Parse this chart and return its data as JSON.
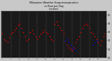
{
  "title": "Milwaukee Weather Evapotranspiration vs Rain per Day (Inches)",
  "background_color": "#c8c8c8",
  "plot_bg_color": "#1a1a1a",
  "et_color": "#ff0000",
  "rain_color": "#0000ff",
  "grid_color": "#808080",
  "ylim": [
    0.0,
    0.55
  ],
  "n_points": 60,
  "et_data": [
    0.28,
    0.22,
    0.2,
    0.18,
    0.24,
    0.28,
    0.3,
    0.32,
    0.35,
    0.38,
    0.4,
    0.35,
    0.3,
    0.25,
    0.2,
    0.22,
    0.3,
    0.32,
    0.28,
    0.25,
    0.22,
    0.25,
    0.28,
    0.3,
    0.32,
    0.3,
    0.28,
    0.25,
    0.22,
    0.2,
    0.4,
    0.42,
    0.38,
    0.35,
    0.32,
    0.28,
    0.2,
    0.15,
    0.12,
    0.1,
    0.08,
    0.12,
    0.18,
    0.22,
    0.25,
    0.3,
    0.35,
    0.38,
    0.4,
    0.38,
    0.35,
    0.3,
    0.28,
    0.25,
    0.22,
    0.18,
    0.15,
    0.2,
    0.25,
    0.28
  ],
  "rain_data": [
    0.0,
    0.0,
    0.0,
    0.0,
    0.0,
    0.0,
    0.0,
    0.0,
    0.0,
    0.0,
    0.0,
    0.0,
    0.0,
    0.0,
    0.0,
    0.0,
    0.0,
    0.0,
    0.0,
    0.0,
    0.0,
    0.0,
    0.0,
    0.0,
    0.0,
    0.0,
    0.0,
    0.0,
    0.0,
    0.0,
    0.0,
    0.0,
    0.0,
    0.0,
    0.0,
    0.0,
    0.2,
    0.22,
    0.18,
    0.15,
    0.12,
    0.1,
    0.08,
    0.0,
    0.0,
    0.0,
    0.0,
    0.0,
    0.0,
    0.0,
    0.0,
    0.0,
    0.15,
    0.18,
    0.2,
    0.0,
    0.0,
    0.0,
    0.0,
    0.0
  ],
  "yticks": [
    0.0,
    0.1,
    0.2,
    0.3,
    0.4,
    0.5
  ],
  "ytick_labels": [
    "0.0",
    "0.1",
    "0.2",
    "0.3",
    "0.4",
    "0.5"
  ]
}
